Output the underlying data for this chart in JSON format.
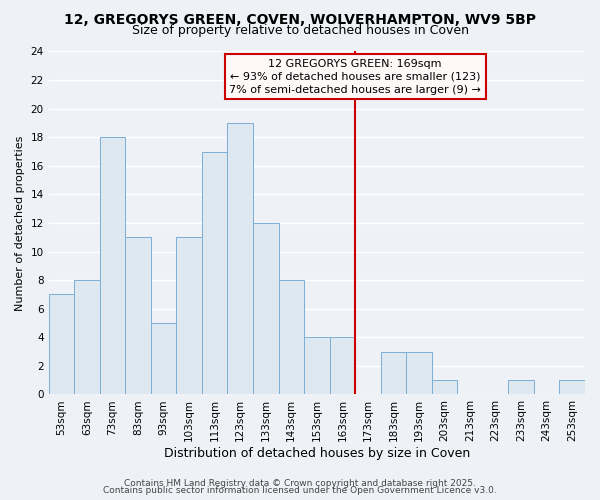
{
  "title": "12, GREGORYS GREEN, COVEN, WOLVERHAMPTON, WV9 5BP",
  "subtitle": "Size of property relative to detached houses in Coven",
  "xlabel": "Distribution of detached houses by size in Coven",
  "ylabel": "Number of detached properties",
  "bar_labels": [
    "53sqm",
    "63sqm",
    "73sqm",
    "83sqm",
    "93sqm",
    "103sqm",
    "113sqm",
    "123sqm",
    "133sqm",
    "143sqm",
    "153sqm",
    "163sqm",
    "173sqm",
    "183sqm",
    "193sqm",
    "203sqm",
    "213sqm",
    "223sqm",
    "233sqm",
    "243sqm",
    "253sqm"
  ],
  "bar_values": [
    7,
    8,
    18,
    11,
    5,
    11,
    17,
    19,
    12,
    8,
    4,
    4,
    0,
    3,
    3,
    1,
    0,
    0,
    1,
    0,
    1
  ],
  "bar_color": "#dde8f0",
  "bar_edge_color": "#7aafd4",
  "ylim": [
    0,
    24
  ],
  "yticks": [
    0,
    2,
    4,
    6,
    8,
    10,
    12,
    14,
    16,
    18,
    20,
    22,
    24
  ],
  "annotation_line1": "12 GREGORYS GREEN: 169sqm",
  "annotation_line2": "← 93% of detached houses are smaller (123)",
  "annotation_line3": "7% of semi-detached houses are larger (9) →",
  "vline_color": "#cc0000",
  "annotation_box_facecolor": "#fff8f8",
  "annotation_box_edgecolor": "#cc0000",
  "footer1": "Contains HM Land Registry data © Crown copyright and database right 2025.",
  "footer2": "Contains public sector information licensed under the Open Government Licence v3.0.",
  "bg_color": "#eef2f7",
  "grid_color": "#ffffff",
  "title_fontsize": 10,
  "subtitle_fontsize": 9,
  "xlabel_fontsize": 9,
  "ylabel_fontsize": 8,
  "tick_fontsize": 7.5,
  "annotation_fontsize": 8,
  "footer_fontsize": 6.5
}
